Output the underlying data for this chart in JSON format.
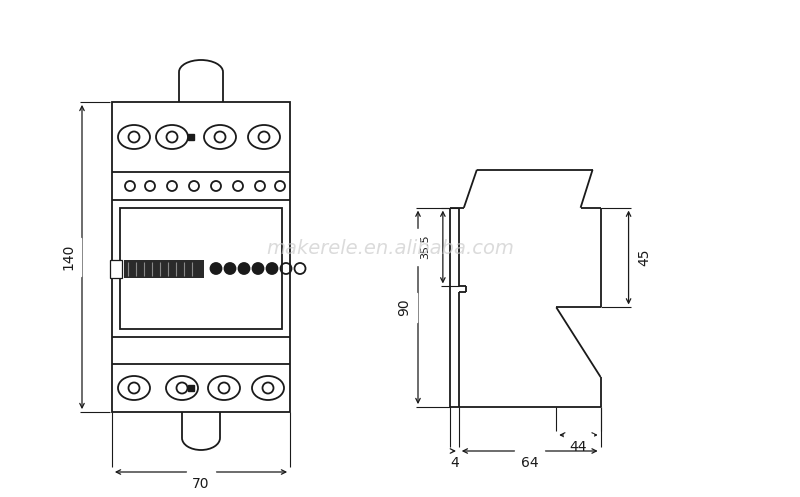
{
  "bg_color": "#ffffff",
  "line_color": "#1a1a1a",
  "watermark": "makerele.en.alibaba.com",
  "watermark_color": "#cccccc",
  "dim_140": "140",
  "dim_70": "70",
  "dim_90": "90",
  "dim_35_5": "35.5",
  "dim_45": "45",
  "dim_44": "44",
  "dim_64": "64",
  "dim_4": "4"
}
